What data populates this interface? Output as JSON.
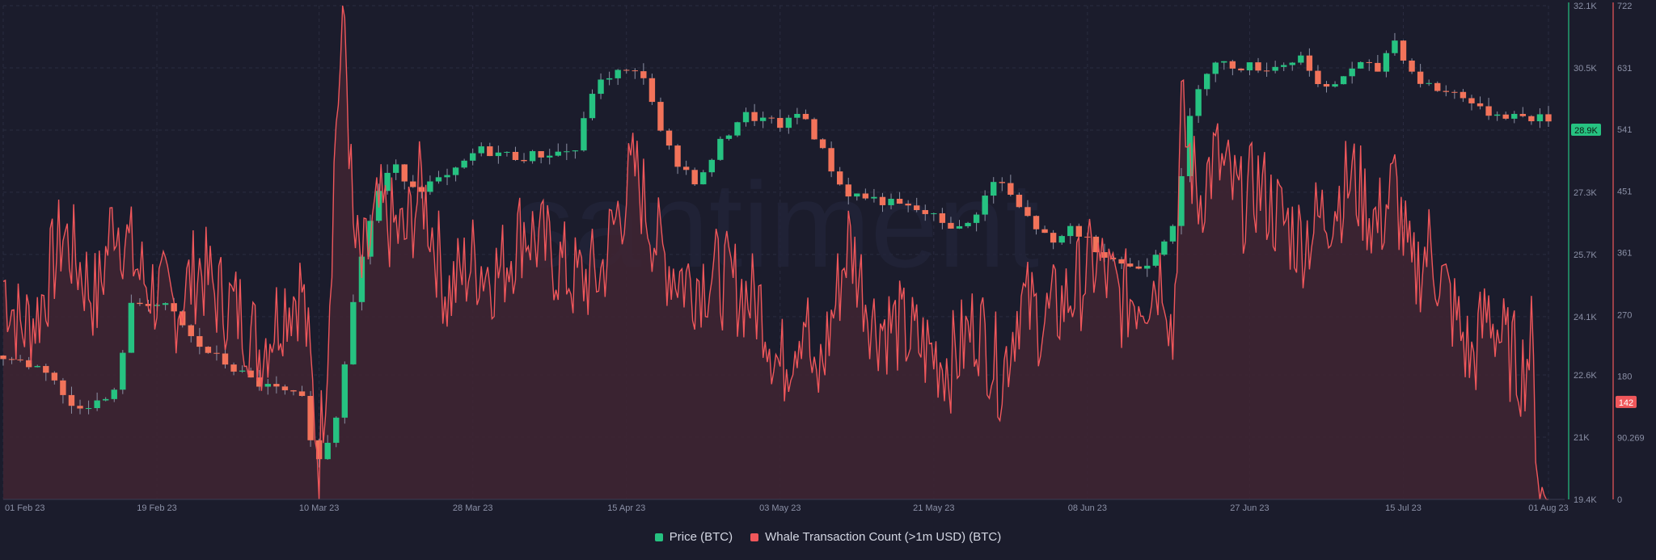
{
  "chart_data": {
    "type": "line",
    "x_axis": {
      "ticks": [
        "01 Feb 23",
        "19 Feb 23",
        "10 Mar 23",
        "28 Mar 23",
        "15 Apr 23",
        "03 May 23",
        "21 May 23",
        "08 Jun 23",
        "27 Jun 23",
        "15 Jul 23",
        "01 Aug 23"
      ],
      "tick_days": [
        0,
        18,
        37,
        55,
        73,
        91,
        109,
        127,
        146,
        164,
        181
      ],
      "range": [
        "01 Feb 23",
        "01 Aug 23"
      ]
    },
    "y_axis_left": {
      "label": "",
      "ticks": [
        "32.1K",
        "30.5K",
        "28.9K",
        "27.3K",
        "25.7K",
        "24.1K",
        "22.6K",
        "21K",
        "19.4K"
      ],
      "tick_values": [
        32100,
        30500,
        28900,
        27300,
        25700,
        24100,
        22600,
        21000,
        19400
      ],
      "range": [
        19400,
        32100
      ],
      "current_label": "28.9K",
      "current_value": 28900,
      "line_color": "#26c281"
    },
    "y_axis_right": {
      "label": "",
      "ticks": [
        "722",
        "631",
        "541",
        "451",
        "361",
        "270",
        "180",
        "90.269",
        "0"
      ],
      "tick_values": [
        722,
        631,
        541,
        451,
        361,
        270,
        180,
        90.269,
        0
      ],
      "range": [
        0,
        722
      ],
      "current_label": "142",
      "current_value": 142,
      "line_color": "#f0575b"
    },
    "series": [
      {
        "name": "Price (BTC)",
        "kind": "candlestick",
        "axis": "left",
        "up_color": "#26c281",
        "down_color": "#f2735a",
        "anchor_dates": [
          "01 Feb 23",
          "04 Feb 23",
          "07 Feb 23",
          "09 Feb 23",
          "13 Feb 23",
          "15 Feb 23",
          "16 Feb 23",
          "18 Feb 23",
          "21 Feb 23",
          "24 Feb 23",
          "03 Mar 23",
          "07 Mar 23",
          "09 Mar 23",
          "10 Mar 23",
          "11 Mar 23",
          "13 Mar 23",
          "14 Mar 23",
          "17 Mar 23",
          "19 Mar 23",
          "22 Mar 23",
          "26 Mar 23",
          "29 Mar 23",
          "03 Apr 23",
          "10 Apr 23",
          "11 Apr 23",
          "14 Apr 23",
          "18 Apr 23",
          "19 Apr 23",
          "21 Apr 23",
          "24 Apr 23",
          "26 Apr 23",
          "29 Apr 23",
          "04 May 23",
          "06 May 23",
          "10 May 23",
          "11 May 23",
          "15 May 23",
          "20 May 23",
          "25 May 23",
          "29 May 23",
          "31 May 23",
          "05 Jun 23",
          "06 Jun 23",
          "10 Jun 23",
          "14 Jun 23",
          "16 Jun 23",
          "19 Jun 23",
          "20 Jun 23",
          "21 Jun 23",
          "23 Jun 23",
          "30 Jun 23",
          "04 Jul 23",
          "06 Jul 23",
          "10 Jul 23",
          "13 Jul 23",
          "14 Jul 23",
          "17 Jul 23",
          "20 Jul 23",
          "23 Jul 23",
          "24 Jul 23",
          "31 Jul 23"
        ],
        "anchor_days": [
          0,
          3,
          6,
          8,
          12,
          14,
          15,
          17,
          20,
          23,
          30,
          34,
          36,
          37,
          38,
          40,
          41,
          44,
          46,
          49,
          53,
          56,
          61,
          68,
          69,
          72,
          76,
          77,
          79,
          82,
          84,
          87,
          92,
          94,
          98,
          99,
          103,
          108,
          113,
          117,
          119,
          124,
          125,
          129,
          133,
          135,
          138,
          139,
          140,
          142,
          149,
          153,
          155,
          159,
          162,
          163,
          166,
          169,
          172,
          173,
          180
        ],
        "anchor_values": [
          23100,
          22900,
          22700,
          21800,
          21900,
          22200,
          24300,
          24500,
          24300,
          23400,
          22400,
          22100,
          21900,
          20200,
          20600,
          21900,
          24100,
          27100,
          28000,
          27400,
          27700,
          28400,
          28200,
          28400,
          29800,
          30400,
          30300,
          29000,
          28200,
          27500,
          28400,
          29300,
          29000,
          29400,
          27700,
          27300,
          27100,
          26800,
          26300,
          27700,
          27000,
          25800,
          26500,
          25800,
          25300,
          25600,
          26700,
          28500,
          29900,
          30600,
          30500,
          30800,
          29800,
          30600,
          30400,
          31400,
          30200,
          29900,
          29800,
          29400,
          29200
        ]
      },
      {
        "name": "Whale Transaction Count (>1m USD) (BTC)",
        "kind": "area",
        "axis": "right",
        "line_color": "#f0575b",
        "fill_color": "#3f2533",
        "anchor_dates": [
          "01 Feb 23",
          "03 Feb 23",
          "05 Feb 23",
          "08 Feb 23",
          "10 Feb 23",
          "12 Feb 23",
          "14 Feb 23",
          "17 Feb 23",
          "19 Feb 23",
          "21 Feb 23",
          "24 Feb 23",
          "26 Feb 23",
          "01 Mar 23",
          "03 Mar 23",
          "06 Mar 23",
          "08 Mar 23",
          "10 Mar 23",
          "11 Mar 23",
          "12 Mar 23",
          "13 Mar 23",
          "14 Mar 23",
          "15 Mar 23",
          "17 Mar 23",
          "20 Mar 23",
          "22 Mar 23",
          "25 Mar 23",
          "28 Mar 23",
          "31 Mar 23",
          "03 Apr 23",
          "06 Apr 23",
          "09 Apr 23",
          "12 Apr 23",
          "14 Apr 23",
          "16 Apr 23",
          "19 Apr 23",
          "22 Apr 23",
          "25 Apr 23",
          "28 Apr 23",
          "01 May 23",
          "03 May 23",
          "06 May 23",
          "07 May 23",
          "09 May 23",
          "11 May 23",
          "14 May 23",
          "17 May 23",
          "20 May 23",
          "23 May 23",
          "26 May 23",
          "29 May 23",
          "01 Jun 23",
          "04 Jun 23",
          "07 Jun 23",
          "10 Jun 23",
          "13 Jun 23",
          "16 Jun 23",
          "18 Jun 23",
          "19 Jun 23",
          "20 Jun 23",
          "22 Jun 23",
          "24 Jun 23",
          "27 Jun 23",
          "29 Jun 23",
          "01 Jul 23",
          "04 Jul 23",
          "07 Jul 23",
          "10 Jul 23",
          "13 Jul 23",
          "15 Jul 23",
          "17 Jul 23",
          "19 Jul 23",
          "22 Jul 23",
          "24 Jul 23",
          "26 Jul 23",
          "28 Jul 23",
          "30 Jul 23",
          "31 Jul 23",
          "01 Aug 23"
        ],
        "anchor_days": [
          0,
          2,
          4,
          7,
          9,
          11,
          13,
          16,
          18,
          20,
          23,
          25,
          28,
          30,
          33,
          35,
          37,
          38,
          39,
          40,
          41,
          42,
          44,
          47,
          49,
          52,
          55,
          58,
          61,
          64,
          67,
          70,
          72,
          74,
          77,
          80,
          83,
          86,
          89,
          91,
          94,
          95,
          97,
          99,
          102,
          105,
          108,
          111,
          114,
          117,
          119,
          122,
          125,
          128,
          131,
          134,
          136,
          137,
          138,
          140,
          142,
          145,
          147,
          149,
          152,
          155,
          158,
          161,
          163,
          165,
          167,
          170,
          172,
          174,
          176,
          178,
          179,
          180
        ],
        "anchor_values": [
          320,
          250,
          270,
          390,
          340,
          290,
          420,
          330,
          300,
          280,
          340,
          300,
          270,
          220,
          290,
          310,
          60,
          230,
          560,
          700,
          380,
          330,
          420,
          380,
          460,
          300,
          350,
          330,
          400,
          360,
          320,
          330,
          420,
          480,
          360,
          320,
          330,
          310,
          280,
          190,
          280,
          150,
          260,
          380,
          260,
          250,
          220,
          200,
          260,
          180,
          290,
          260,
          300,
          350,
          290,
          310,
          340,
          230,
          560,
          440,
          500,
          430,
          460,
          420,
          380,
          420,
          470,
          400,
          460,
          320,
          370,
          270,
          200,
          280,
          220,
          190,
          230,
          0
        ]
      }
    ]
  },
  "legend": {
    "items": [
      {
        "label": "Price (BTC)",
        "color": "#26c281"
      },
      {
        "label": "Whale Transaction Count (>1m USD) (BTC)",
        "color": "#f0575b"
      }
    ]
  },
  "watermark": "santiment"
}
